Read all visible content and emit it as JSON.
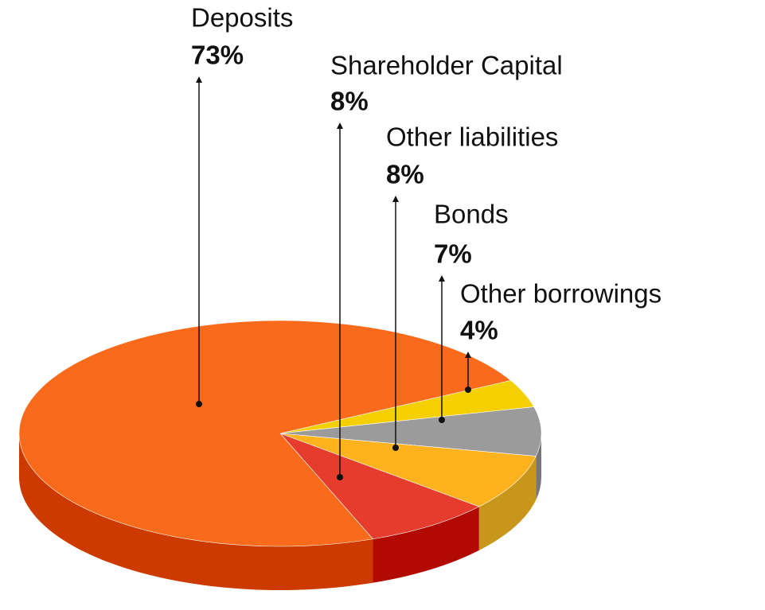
{
  "chart_data": {
    "type": "pie3d",
    "categories": [
      "Deposits",
      "Shareholder Capital",
      "Other liabilities",
      "Bonds",
      "Other borrowings"
    ],
    "values": [
      73,
      8,
      8,
      7,
      4
    ],
    "value_labels": [
      "73%",
      "8%",
      "8%",
      "7%",
      "4%"
    ],
    "colors": [
      "#f96a1b",
      "#e53c2e",
      "#fdb21e",
      "#9b9b9b",
      "#f5d000"
    ],
    "side_colors": [
      "#cc3a00",
      "#b20a00",
      "#c9961c",
      "#767676",
      "#c9a800"
    ]
  }
}
